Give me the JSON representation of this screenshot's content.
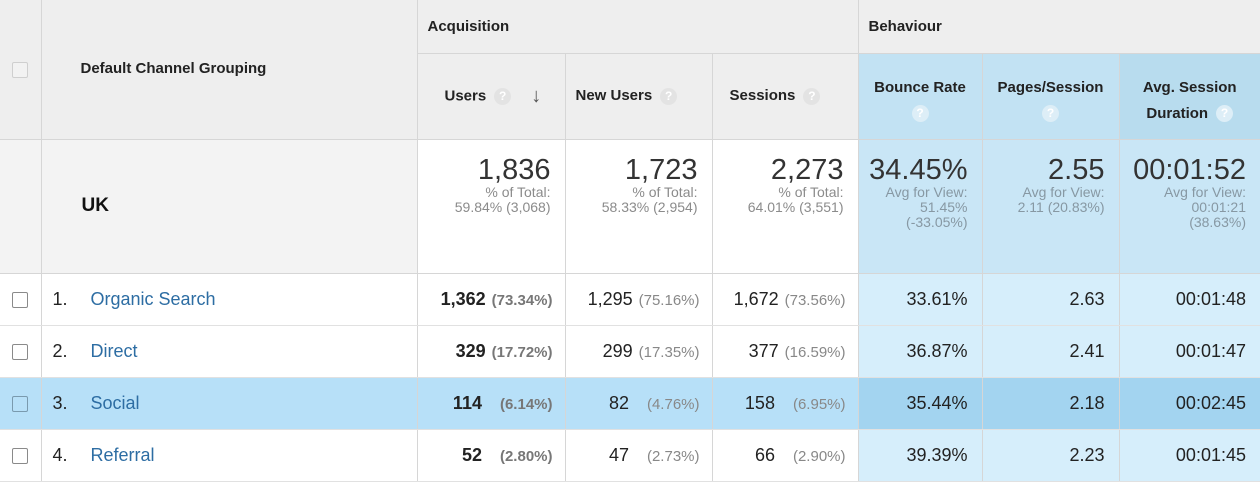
{
  "header": {
    "dimension_label": "Default Channel Grouping",
    "groups": {
      "acquisition": "Acquisition",
      "behaviour": "Behaviour"
    },
    "columns": {
      "users": "Users",
      "new_users": "New Users",
      "sessions": "Sessions",
      "bounce_rate": "Bounce Rate",
      "pages_session": "Pages/Session",
      "avg_session_line1": "Avg. Session",
      "avg_session_line2": "Duration"
    },
    "help_glyph": "?",
    "sort_glyph": "↓"
  },
  "summary": {
    "label": "UK",
    "users": {
      "value": "1,836",
      "sub1": "% of Total:",
      "sub2": "59.84% (3,068)"
    },
    "new_users": {
      "value": "1,723",
      "sub1": "% of Total:",
      "sub2": "58.33% (2,954)"
    },
    "sessions": {
      "value": "2,273",
      "sub1": "% of Total:",
      "sub2": "64.01% (3,551)"
    },
    "bounce_rate": {
      "value": "34.45%",
      "sub1": "Avg for View:",
      "sub2": "51.45%",
      "sub3": "(-33.05%)"
    },
    "pages_session": {
      "value": "2.55",
      "sub1": "Avg for View:",
      "sub2": "2.11 (20.83%)"
    },
    "avg_session": {
      "value": "00:01:52",
      "sub1": "Avg for View:",
      "sub2": "00:01:21",
      "sub3": "(38.63%)"
    }
  },
  "rows": [
    {
      "rank": "1.",
      "channel": "Organic Search",
      "users": "1,362",
      "users_pct": "(73.34%)",
      "new_users": "1,295",
      "new_users_pct": "(75.16%)",
      "sessions": "1,672",
      "sessions_pct": "(73.56%)",
      "bounce_rate": "33.61%",
      "pages_session": "2.63",
      "avg_session": "00:01:48"
    },
    {
      "rank": "2.",
      "channel": "Direct",
      "users": "329",
      "users_pct": "(17.72%)",
      "new_users": "299",
      "new_users_pct": "(17.35%)",
      "sessions": "377",
      "sessions_pct": "(16.59%)",
      "bounce_rate": "36.87%",
      "pages_session": "2.41",
      "avg_session": "00:01:47"
    },
    {
      "rank": "3.",
      "channel": "Social",
      "users": "114",
      "users_pct": "(6.14%)",
      "new_users": "82",
      "new_users_pct": "(4.76%)",
      "sessions": "158",
      "sessions_pct": "(6.95%)",
      "bounce_rate": "35.44%",
      "pages_session": "2.18",
      "avg_session": "00:02:45"
    },
    {
      "rank": "4.",
      "channel": "Referral",
      "users": "52",
      "users_pct": "(2.80%)",
      "new_users": "47",
      "new_users_pct": "(2.73%)",
      "sessions": "66",
      "sessions_pct": "(2.90%)",
      "bounce_rate": "39.39%",
      "pages_session": "2.23",
      "avg_session": "00:01:45"
    }
  ],
  "highlighted_row_index": 2,
  "icons": {
    "help": "help-circle-icon",
    "sort": "arrow-down-icon",
    "checkbox": "checkbox-icon"
  },
  "colors": {
    "link": "#2d6da3",
    "behaviour_header": "#c2e2f3",
    "behaviour_cells": "#d6eefb",
    "row_highlight": "#b7e0f8"
  }
}
